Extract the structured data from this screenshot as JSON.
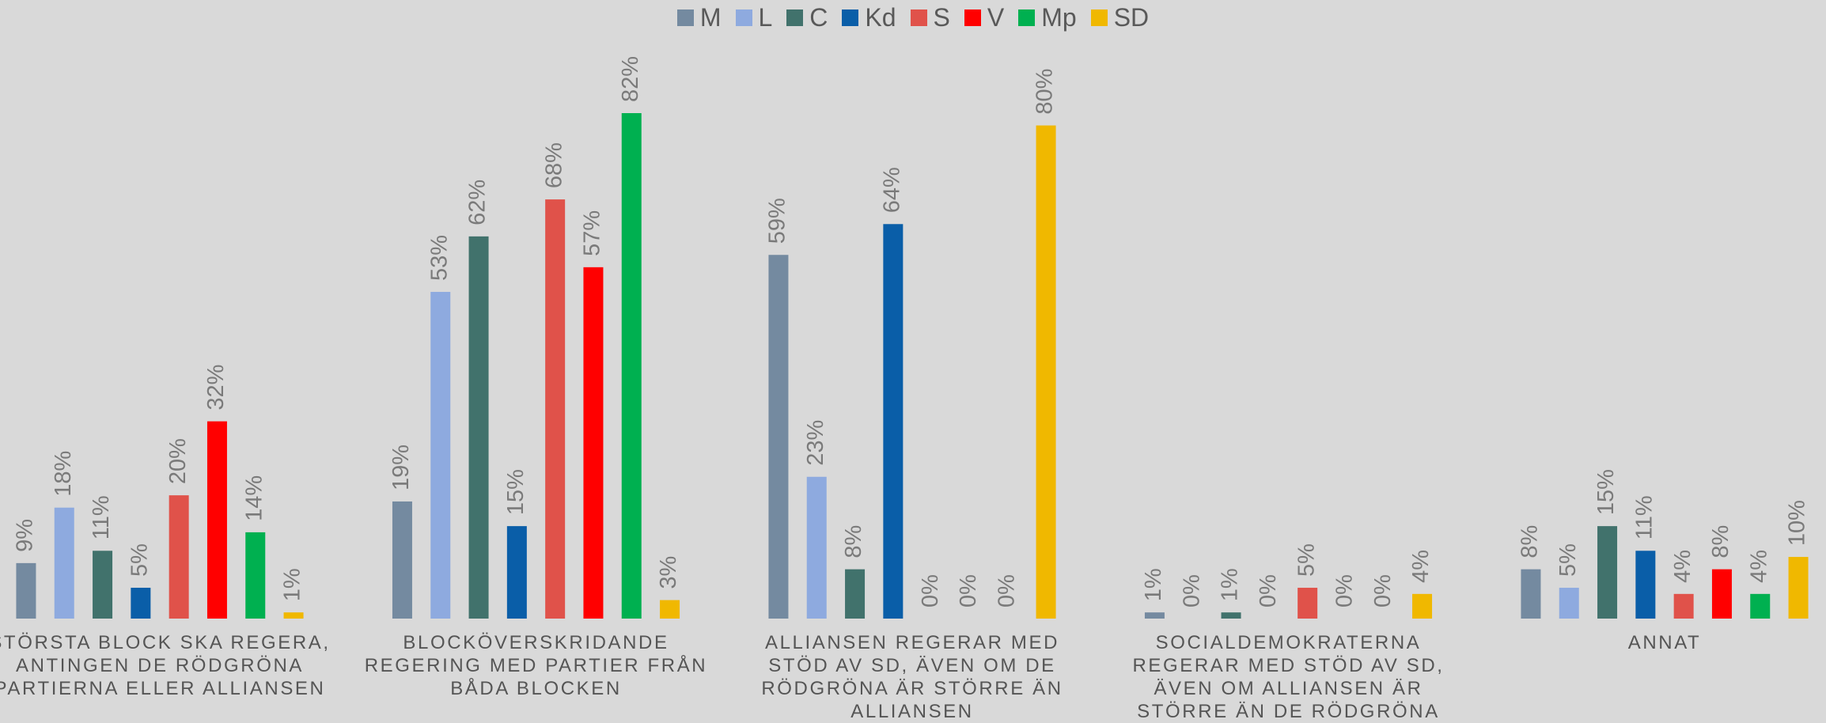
{
  "chart_data": {
    "type": "bar",
    "categories": [
      "STÖRSTA BLOCK SKA REGERA, ANTINGEN DE RÖDGRÖNA PARTIERNA ELLER ALLIANSEN",
      "BLOCKÖVERSKRIDANDE REGERING MED PARTIER FRÅN BÅDA BLOCKEN",
      "ALLIANSEN REGERAR MED STÖD AV SD, ÄVEN OM DE RÖDGRÖNA ÄR STÖRRE ÄN ALLIANSEN",
      "SOCIALDEMOKRATERNA REGERAR MED STÖD AV SD, ÄVEN OM ALLIANSEN ÄR STÖRRE ÄN DE RÖDGRÖNA",
      "ANNAT"
    ],
    "series": [
      {
        "name": "M",
        "color": "#748aa0",
        "values": [
          9,
          19,
          59,
          1,
          8
        ],
        "value_labels": [
          "9%",
          "19%",
          "59%",
          "1%",
          "8%"
        ]
      },
      {
        "name": "L",
        "color": "#8eaadf",
        "values": [
          18,
          53,
          23,
          0,
          5
        ],
        "value_labels": [
          "18%",
          "53%",
          "23%",
          "0%",
          "5%"
        ]
      },
      {
        "name": "C",
        "color": "#41726c",
        "values": [
          11,
          62,
          8,
          1,
          15
        ],
        "value_labels": [
          "11%",
          "62%",
          "8%",
          "1%",
          "15%"
        ]
      },
      {
        "name": "Kd",
        "color": "#0a5ea8",
        "values": [
          5,
          15,
          64,
          0,
          11
        ],
        "value_labels": [
          "5%",
          "15%",
          "64%",
          "0%",
          "11%"
        ]
      },
      {
        "name": "S",
        "color": "#e0524a",
        "values": [
          20,
          68,
          0,
          5,
          4
        ],
        "value_labels": [
          "20%",
          "68%",
          "0%",
          "5%",
          "4%"
        ]
      },
      {
        "name": "V",
        "color": "#ff0000",
        "values": [
          32,
          57,
          0,
          0,
          8
        ],
        "value_labels": [
          "32%",
          "57%",
          "0%",
          "0%",
          "8%"
        ]
      },
      {
        "name": "Mp",
        "color": "#00b050",
        "values": [
          14,
          82,
          0,
          0,
          4
        ],
        "value_labels": [
          "14%",
          "82%",
          "0%",
          "0%",
          "4%"
        ]
      },
      {
        "name": "SD",
        "color": "#f0b800",
        "values": [
          1,
          3,
          80,
          4,
          10
        ],
        "value_labels": [
          "1%",
          "3%",
          "80%",
          "4%",
          "10%"
        ]
      }
    ],
    "legend": "top"
  }
}
